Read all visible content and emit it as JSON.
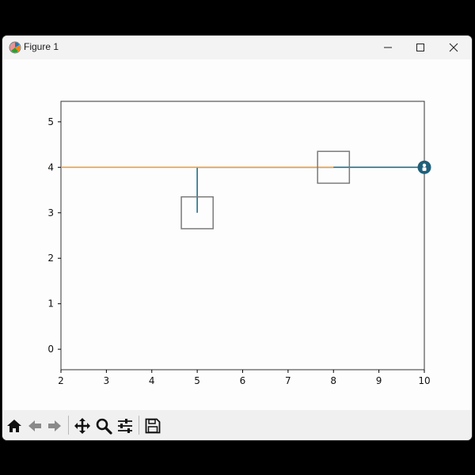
{
  "window": {
    "title": "Figure 1",
    "icon": "matplotlib-figure-icon",
    "controls": [
      "minimize-icon",
      "maximize-icon",
      "close-icon"
    ]
  },
  "toolbar": {
    "buttons": [
      {
        "name": "home-button",
        "icon": "home-icon"
      },
      {
        "name": "back-button",
        "icon": "arrow-left-icon"
      },
      {
        "name": "forward-button",
        "icon": "arrow-right-icon"
      },
      {
        "name": "pan-button",
        "icon": "move-arrows-icon"
      },
      {
        "name": "zoom-button",
        "icon": "magnifier-icon"
      },
      {
        "name": "configure-subplots-button",
        "icon": "sliders-icon"
      },
      {
        "name": "save-button",
        "icon": "floppy-disk-icon"
      }
    ]
  },
  "colors": {
    "axes_frame": "#333333",
    "line_blue": "#1f6f8b",
    "line_orange": "#f29d3a",
    "squares": "#7a7a7a",
    "marker": "#1f5f7a"
  },
  "chart_data": {
    "type": "line",
    "xlim": [
      2,
      10
    ],
    "ylim": [
      -0.45,
      5.45
    ],
    "xticks": [
      "2",
      "3",
      "4",
      "5",
      "6",
      "7",
      "8",
      "9",
      "10"
    ],
    "yticks": [
      "0",
      "1",
      "2",
      "3",
      "4",
      "5"
    ],
    "grid": false,
    "series": [
      {
        "color": "#1f6f8b",
        "points": [
          [
            5,
            3
          ],
          [
            5,
            4
          ],
          [
            10,
            4
          ]
        ]
      },
      {
        "color": "#f29d3a",
        "points": [
          [
            2,
            4
          ],
          [
            8,
            4
          ]
        ]
      }
    ],
    "squares": [
      {
        "x": 5,
        "y": 3,
        "half_width": 0.35,
        "half_height": 0.35
      },
      {
        "x": 8,
        "y": 4,
        "half_width": 0.35,
        "half_height": 0.35
      }
    ],
    "marker": {
      "x": 10,
      "y": 4,
      "icon": "robot-marker-icon"
    }
  }
}
